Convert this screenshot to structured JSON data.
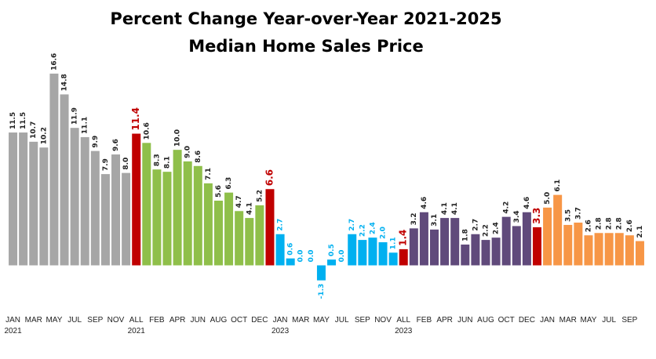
{
  "chart_data": {
    "type": "bar",
    "title": "Percent Change Year-over-Year 2021-2025",
    "subtitle": "Median Home Sales Price",
    "categories": [
      "JAN\n2021",
      null,
      "MAR",
      null,
      "MAY",
      null,
      "JUL",
      null,
      "SEP",
      null,
      "NOV",
      null,
      "ALL\n2021",
      null,
      "FEB",
      null,
      "APR",
      null,
      "JUN",
      null,
      "AUG",
      null,
      "OCT",
      null,
      "DEC",
      null,
      "JAN\n2023",
      null,
      "MAR",
      null,
      "MAY",
      null,
      "JUL",
      null,
      "SEP",
      null,
      "NOV",
      null,
      "ALL\n2023",
      null,
      "FEB",
      null,
      "APR",
      null,
      "JUN",
      null,
      "AUG",
      null,
      "OCT",
      null,
      "DEC",
      null,
      "JAN",
      null,
      "MAR",
      null,
      "MAY",
      null,
      "JUL",
      null,
      "SEP",
      null
    ],
    "values": [
      11.5,
      11.5,
      10.7,
      10.2,
      16.6,
      14.8,
      11.9,
      11.1,
      9.9,
      7.9,
      9.6,
      8.0,
      11.4,
      10.6,
      8.3,
      8.1,
      10.0,
      9.0,
      8.6,
      7.1,
      5.6,
      6.3,
      4.7,
      4.1,
      5.2,
      6.6,
      2.7,
      0.6,
      0.0,
      0.0,
      -1.3,
      0.5,
      0.0,
      2.7,
      2.2,
      2.4,
      2.0,
      1.1,
      1.4,
      3.2,
      4.6,
      3.1,
      4.1,
      4.1,
      1.8,
      2.7,
      2.2,
      2.4,
      4.2,
      3.4,
      4.6,
      3.3,
      5.0,
      6.1,
      3.5,
      3.7,
      2.6,
      2.8,
      2.8,
      2.8,
      2.6,
      2.1
    ],
    "value_labels": [
      "11.5",
      "11.5",
      "10.7",
      "10.2",
      "16.6",
      "14.8",
      "11.9",
      "11.1",
      "9.9",
      "7.9",
      "9.6",
      "8.0",
      "11.4",
      "10.6",
      "8.3",
      "8.1",
      "10.0",
      "9.0",
      "8.6",
      "7.1",
      "5.6",
      "6.3",
      "4.7",
      "4.1",
      "5.2",
      "6.6",
      "2.7",
      "0.6",
      "0.0",
      "0.0",
      "-1.3",
      "0.5",
      "0.0",
      "2.7",
      "2.2",
      "2.4",
      "2.0",
      "1.1",
      "1.4",
      "3.2",
      "4.6",
      "3.1",
      "4.1",
      "4.1",
      "1.8",
      "2.7",
      "2.2",
      "2.4",
      "4.2",
      "3.4",
      "4.6",
      "3.3",
      "5.0",
      "6.1",
      "3.5",
      "3.7",
      "2.6",
      "2.8",
      "2.8",
      "2.8",
      "2.6",
      "2.1"
    ],
    "colors": [
      "#a6a6a6",
      "#a6a6a6",
      "#a6a6a6",
      "#a6a6a6",
      "#a6a6a6",
      "#a6a6a6",
      "#a6a6a6",
      "#a6a6a6",
      "#a6a6a6",
      "#a6a6a6",
      "#a6a6a6",
      "#a6a6a6",
      "#c00000",
      "#8fbf4a",
      "#8fbf4a",
      "#8fbf4a",
      "#8fbf4a",
      "#8fbf4a",
      "#8fbf4a",
      "#8fbf4a",
      "#8fbf4a",
      "#8fbf4a",
      "#8fbf4a",
      "#8fbf4a",
      "#8fbf4a",
      "#c00000",
      "#00b0f0",
      "#00b0f0",
      "#00b0f0",
      "#00b0f0",
      "#00b0f0",
      "#00b0f0",
      "#00b0f0",
      "#00b0f0",
      "#00b0f0",
      "#00b0f0",
      "#00b0f0",
      "#00b0f0",
      "#c00000",
      "#604a7b",
      "#604a7b",
      "#604a7b",
      "#604a7b",
      "#604a7b",
      "#604a7b",
      "#604a7b",
      "#604a7b",
      "#604a7b",
      "#604a7b",
      "#604a7b",
      "#604a7b",
      "#c00000",
      "#f79646",
      "#f79646",
      "#f79646",
      "#f79646",
      "#f79646",
      "#f79646",
      "#f79646",
      "#f79646",
      "#f79646",
      "#f79646"
    ],
    "ylim": [
      -2,
      17
    ]
  }
}
